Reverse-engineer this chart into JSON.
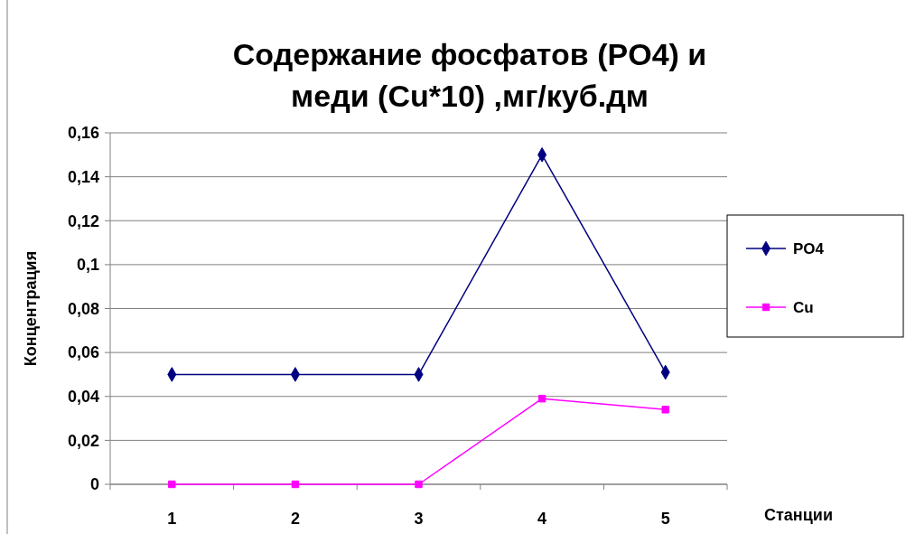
{
  "chart_data": {
    "type": "line",
    "title": "Содержание фосфатов (PO4) и меди (Cu*10) ,мг/куб.дм",
    "xlabel": "Станции",
    "ylabel": "Концентрация",
    "categories": [
      "1",
      "2",
      "3",
      "4",
      "5"
    ],
    "series": [
      {
        "name": "PO4",
        "color": "#000080",
        "marker": "diamond",
        "values": [
          0.05,
          0.05,
          0.05,
          0.15,
          0.051
        ]
      },
      {
        "name": "Cu",
        "color": "#ff00ff",
        "marker": "square",
        "values": [
          0,
          0,
          0,
          0.039,
          0.034
        ]
      }
    ],
    "ylim": [
      0,
      0.16
    ],
    "yticks": [
      0,
      {
        "value": 0.02,
        "label": "0,02"
      },
      {
        "value": 0.04,
        "label": "0,04"
      },
      {
        "value": 0.06,
        "label": "0,06"
      },
      {
        "value": 0.08,
        "label": "0,08"
      },
      {
        "value": 0.1,
        "label": "0,1"
      },
      {
        "value": 0.12,
        "label": "0,12"
      },
      {
        "value": 0.14,
        "label": "0,14"
      },
      {
        "value": 0.16,
        "label": "0,16"
      }
    ],
    "grid": "y",
    "legend": "right",
    "line_style": "solid"
  }
}
